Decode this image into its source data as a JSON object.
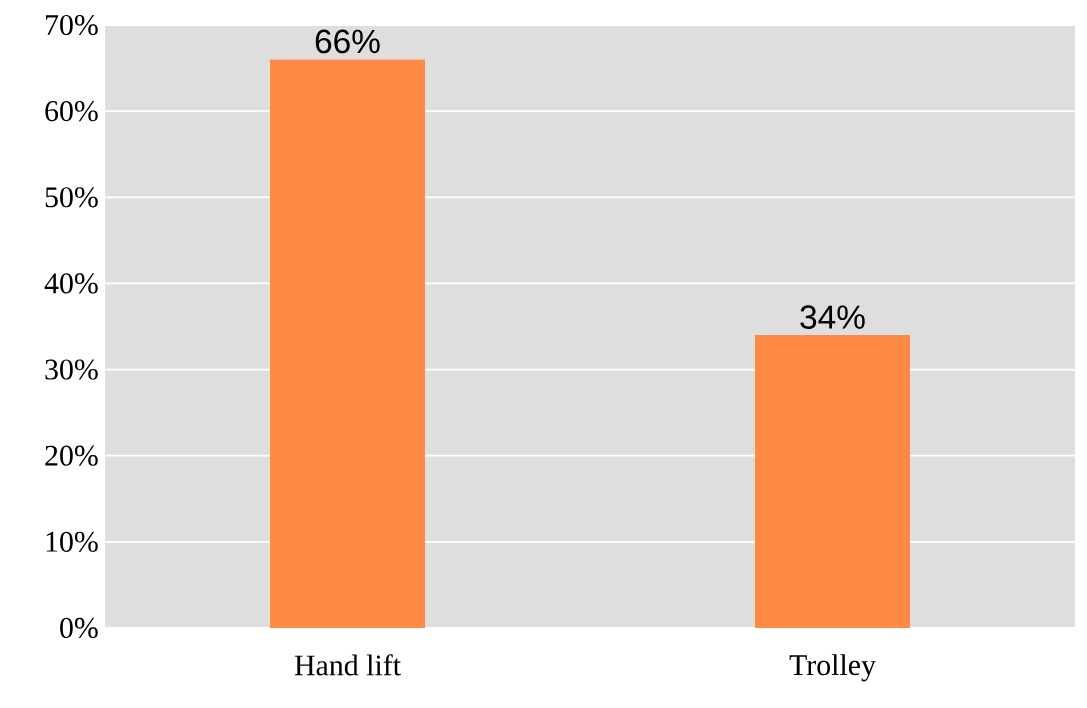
{
  "chart_data": {
    "type": "bar",
    "categories": [
      "Hand lift",
      "Trolley"
    ],
    "values": [
      66,
      34
    ],
    "value_labels": [
      "66%",
      "34%"
    ],
    "color": "#ff8a45",
    "ylim": [
      0,
      70
    ],
    "yticks": [
      {
        "value": 0,
        "label": "0%"
      },
      {
        "value": 10,
        "label": "10%"
      },
      {
        "value": 20,
        "label": "20%"
      },
      {
        "value": 30,
        "label": "30%"
      },
      {
        "value": 40,
        "label": "40%"
      },
      {
        "value": 50,
        "label": "50%"
      },
      {
        "value": 60,
        "label": "60%"
      },
      {
        "value": 70,
        "label": "70%"
      }
    ],
    "grid": "y"
  }
}
